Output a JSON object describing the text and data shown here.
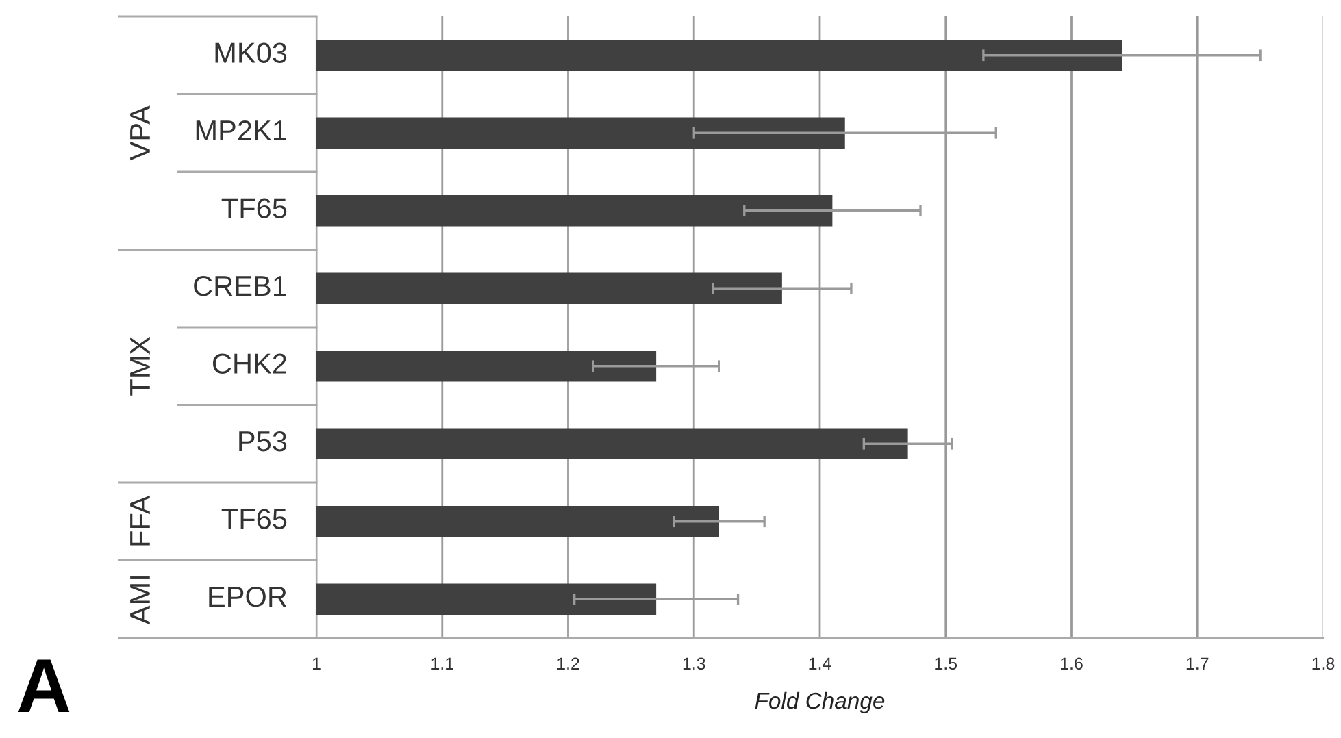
{
  "chart_data": {
    "type": "bar",
    "orientation": "horizontal",
    "xlabel": "Fold Change",
    "categories": [
      "MK03",
      "MP2K1",
      "TF65",
      "CREB1",
      "CHK2",
      "P53",
      "TF65",
      "EPOR"
    ],
    "values": [
      1.64,
      1.42,
      1.41,
      1.37,
      1.27,
      1.47,
      1.32,
      1.27
    ],
    "errors": [
      0.11,
      0.12,
      0.07,
      0.055,
      0.05,
      0.035,
      0.036,
      0.065
    ],
    "color": "#404040",
    "xlim": [
      1,
      1.8
    ],
    "xticks": [
      1,
      1.1,
      1.2,
      1.3,
      1.4,
      1.5,
      1.6,
      1.7,
      1.8
    ],
    "grid": "x",
    "annotations": [
      "VPA",
      "TMX",
      "FFA",
      "AMI",
      "A"
    ]
  }
}
